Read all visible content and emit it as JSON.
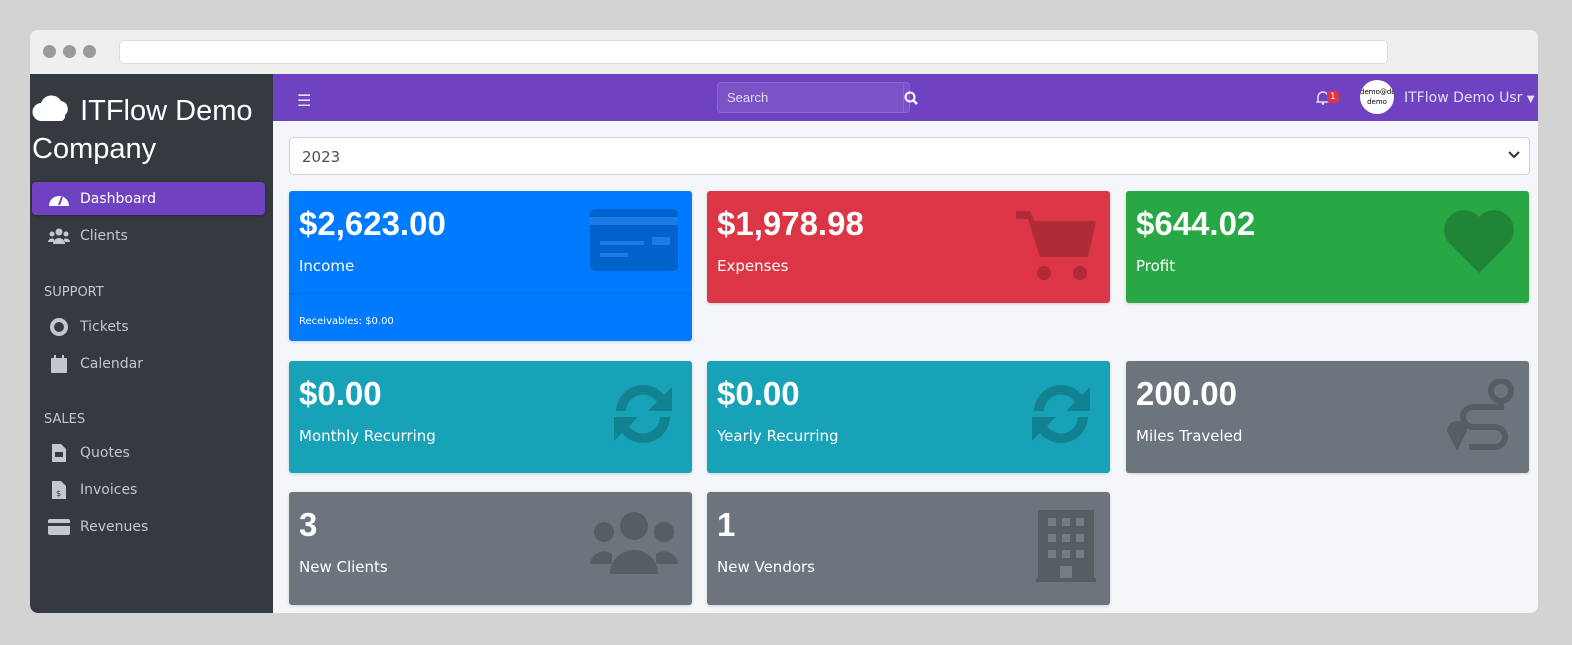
{
  "brand": {
    "name": "ITFlow Demo Company",
    "icon": "cloud-icon"
  },
  "sidebar": {
    "items": [
      {
        "label": "Dashboard",
        "icon": "tachometer-icon",
        "active": true
      },
      {
        "label": "Clients",
        "icon": "users-icon"
      }
    ],
    "support_header": "SUPPORT",
    "support": [
      {
        "label": "Tickets",
        "icon": "life-ring-icon"
      },
      {
        "label": "Calendar",
        "icon": "calendar-icon"
      }
    ],
    "sales_header": "SALES",
    "sales": [
      {
        "label": "Quotes",
        "icon": "file-icon"
      },
      {
        "label": "Invoices",
        "icon": "invoice-icon"
      },
      {
        "label": "Revenues",
        "icon": "credit-card-icon"
      }
    ]
  },
  "topbar": {
    "search_placeholder": "Search",
    "notification_count": "1",
    "avatar_text": "demo@demo demo",
    "user_name": "ITFlow Demo Usr"
  },
  "year_select": {
    "value": "2023"
  },
  "cards": [
    {
      "value": "$2,623.00",
      "label": "Income",
      "footer": "Receivables: $0.00",
      "color": "#007bff",
      "icon": "credit-card-icon"
    },
    {
      "value": "$1,978.98",
      "label": "Expenses",
      "color": "#dc3545",
      "icon": "shopping-cart-icon"
    },
    {
      "value": "$644.02",
      "label": "Profit",
      "color": "#28a745",
      "icon": "heart-icon"
    },
    {
      "value": "$0.00",
      "label": "Monthly Recurring",
      "color": "#17a2b8",
      "icon": "sync-icon"
    },
    {
      "value": "$0.00",
      "label": "Yearly Recurring",
      "color": "#17a2b8",
      "icon": "sync-icon"
    },
    {
      "value": "200.00",
      "label": "Miles Traveled",
      "color": "#6c757d",
      "icon": "route-icon"
    },
    {
      "value": "3",
      "label": "New Clients",
      "color": "#6c757d",
      "icon": "users-icon"
    },
    {
      "value": "1",
      "label": "New Vendors",
      "color": "#6c757d",
      "icon": "building-icon"
    }
  ]
}
